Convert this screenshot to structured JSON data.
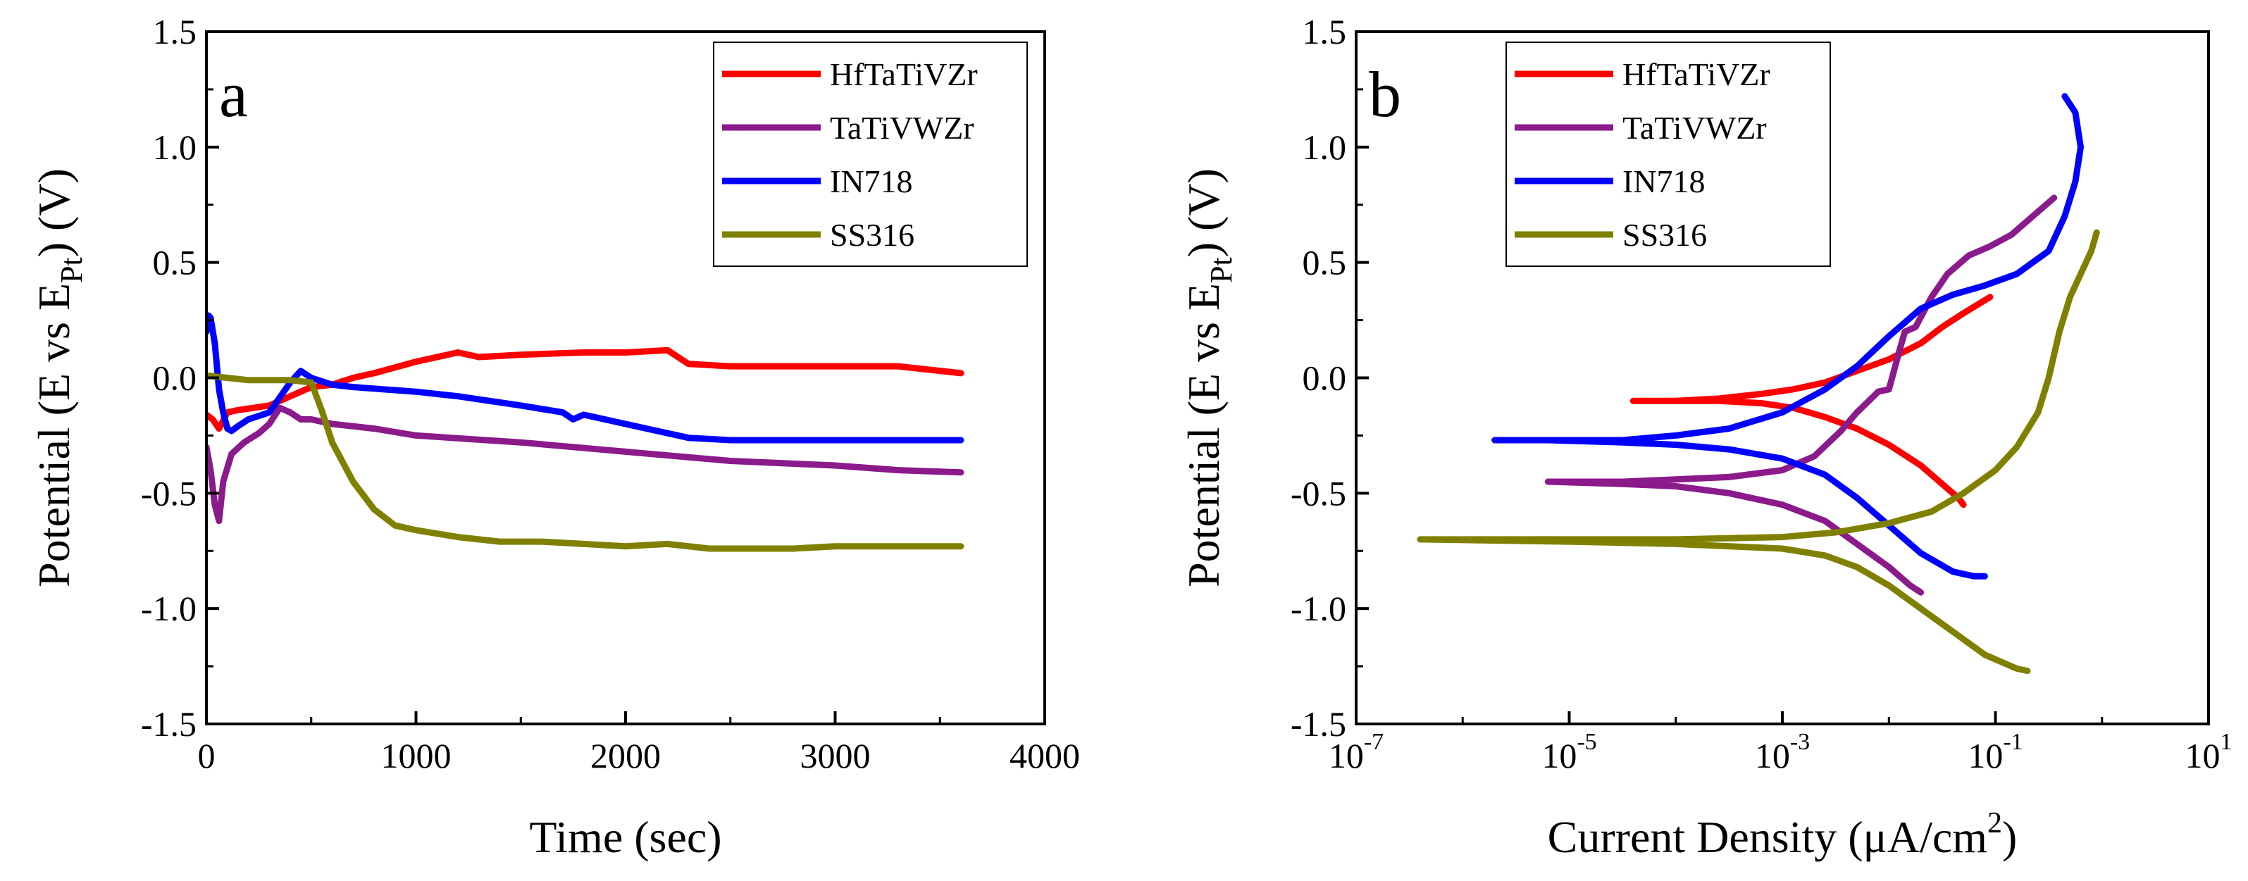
{
  "chart_data": [
    {
      "panel_label": "a",
      "type": "line",
      "xlabel": "Time (sec)",
      "ylabel": {
        "pre": "Potential (E vs E",
        "sub": "Pt",
        "post": ") (V)"
      },
      "xlim": [
        0,
        4000
      ],
      "ylim": [
        -1.5,
        1.5
      ],
      "xticks": [
        0,
        1000,
        2000,
        3000,
        4000
      ],
      "xtick_labels": [
        "0",
        "1000",
        "2000",
        "3000",
        "4000"
      ],
      "yticks": [
        -1.5,
        -1.0,
        -0.5,
        0.0,
        0.5,
        1.0,
        1.5
      ],
      "ytick_labels": [
        "-1.5",
        "-1.0",
        "-0.5",
        "0.0",
        "0.5",
        "1.0",
        "1.5"
      ],
      "legend_position": "top-right",
      "series": [
        {
          "name": "HfTaTiVZr",
          "color": "#ff0000",
          "x": [
            0,
            30,
            60,
            100,
            150,
            300,
            400,
            500,
            600,
            700,
            800,
            1000,
            1200,
            1300,
            1500,
            1800,
            2000,
            2200,
            2300,
            2500,
            3000,
            3300,
            3600
          ],
          "y": [
            -0.16,
            -0.18,
            -0.22,
            -0.15,
            -0.14,
            -0.12,
            -0.08,
            -0.04,
            -0.03,
            0.0,
            0.02,
            0.07,
            0.11,
            0.09,
            0.1,
            0.11,
            0.11,
            0.12,
            0.06,
            0.05,
            0.05,
            0.05,
            0.02
          ]
        },
        {
          "name": "TaTiVWZr",
          "color": "#8b1a8b",
          "x": [
            0,
            20,
            40,
            60,
            80,
            120,
            180,
            250,
            300,
            350,
            400,
            450,
            500,
            600,
            800,
            1000,
            1500,
            2000,
            2500,
            3000,
            3300,
            3600
          ],
          "y": [
            -0.3,
            -0.4,
            -0.55,
            -0.62,
            -0.45,
            -0.33,
            -0.28,
            -0.24,
            -0.2,
            -0.13,
            -0.15,
            -0.18,
            -0.18,
            -0.2,
            -0.22,
            -0.25,
            -0.28,
            -0.32,
            -0.36,
            -0.38,
            -0.4,
            -0.41
          ]
        },
        {
          "name": "IN718",
          "color": "#0000ff",
          "x": [
            0,
            10,
            20,
            40,
            60,
            80,
            100,
            120,
            150,
            200,
            300,
            400,
            450,
            500,
            600,
            700,
            1000,
            1200,
            1500,
            1700,
            1750,
            1800,
            2000,
            2100,
            2200,
            2300,
            2500,
            3000,
            3600
          ],
          "y": [
            0.2,
            0.27,
            0.26,
            0.15,
            -0.05,
            -0.15,
            -0.22,
            -0.23,
            -0.21,
            -0.18,
            -0.15,
            -0.02,
            0.03,
            0.0,
            -0.03,
            -0.04,
            -0.06,
            -0.08,
            -0.12,
            -0.15,
            -0.18,
            -0.16,
            -0.2,
            -0.22,
            -0.24,
            -0.26,
            -0.27,
            -0.27,
            -0.27
          ]
        },
        {
          "name": "SS316",
          "color": "#808000",
          "x": [
            0,
            100,
            200,
            300,
            400,
            500,
            550,
            600,
            700,
            800,
            900,
            1000,
            1200,
            1400,
            1600,
            1800,
            2000,
            2200,
            2400,
            2600,
            2800,
            3000,
            3200,
            3400,
            3600
          ],
          "y": [
            0.01,
            0.0,
            -0.01,
            -0.01,
            -0.01,
            -0.02,
            -0.14,
            -0.28,
            -0.45,
            -0.57,
            -0.64,
            -0.66,
            -0.69,
            -0.71,
            -0.71,
            -0.72,
            -0.73,
            -0.72,
            -0.74,
            -0.74,
            -0.74,
            -0.73,
            -0.73,
            -0.73,
            -0.73
          ]
        }
      ]
    },
    {
      "panel_label": "b",
      "type": "line",
      "x_scale": "log",
      "xlabel": {
        "pre": "Current Density (",
        "mu": "μ",
        "mid": "A/cm",
        "sup": "2",
        "post": ")"
      },
      "ylabel": {
        "pre": "Potential (E vs E",
        "sub": "Pt",
        "post": ") (V)"
      },
      "xlim_exponent": [
        -7,
        1
      ],
      "ylim": [
        -1.5,
        1.5
      ],
      "xtick_exponents": [
        -7,
        -5,
        -3,
        -1,
        1
      ],
      "xtick_labels": [
        {
          "base": "10",
          "exp": "-7"
        },
        {
          "base": "10",
          "exp": "-5"
        },
        {
          "base": "10",
          "exp": "-3"
        },
        {
          "base": "10",
          "exp": "-1"
        },
        {
          "base": "10",
          "exp": "1"
        }
      ],
      "yticks": [
        -1.5,
        -1.0,
        -0.5,
        0.0,
        0.5,
        1.0,
        1.5
      ],
      "ytick_labels": [
        "-1.5",
        "-1.0",
        "-0.5",
        "0.0",
        "0.5",
        "1.0",
        "1.5"
      ],
      "legend_position": "top-left",
      "series": [
        {
          "name": "HfTaTiVZr",
          "color": "#ff0000",
          "log10_i": [
            -1.05,
            -1.3,
            -1.5,
            -1.7,
            -2.0,
            -2.3,
            -2.6,
            -2.9,
            -3.2,
            -3.6,
            -4.0,
            -4.4,
            -4.0,
            -3.6,
            -3.2,
            -2.9,
            -2.6,
            -2.3,
            -2.0,
            -1.7,
            -1.5,
            -1.35,
            -1.3
          ],
          "E": [
            0.35,
            0.28,
            0.22,
            0.15,
            0.08,
            0.03,
            -0.02,
            -0.05,
            -0.07,
            -0.09,
            -0.1,
            -0.1,
            -0.1,
            -0.1,
            -0.11,
            -0.13,
            -0.17,
            -0.22,
            -0.29,
            -0.38,
            -0.46,
            -0.52,
            -0.55
          ]
        },
        {
          "name": "TaTiVWZr",
          "color": "#8b1a8b",
          "log10_i": [
            -0.45,
            -0.65,
            -0.85,
            -1.05,
            -1.25,
            -1.45,
            -1.6,
            -1.75,
            -1.85,
            -1.9,
            -2.0,
            -2.1,
            -2.3,
            -2.45,
            -2.7,
            -3.0,
            -3.5,
            -4.0,
            -4.5,
            -5.2,
            -4.5,
            -4.0,
            -3.5,
            -3.0,
            -2.6,
            -2.3,
            -2.0,
            -1.8,
            -1.7
          ],
          "E": [
            0.78,
            0.7,
            0.62,
            0.57,
            0.53,
            0.45,
            0.35,
            0.22,
            0.2,
            0.12,
            -0.05,
            -0.06,
            -0.15,
            -0.23,
            -0.34,
            -0.4,
            -0.43,
            -0.44,
            -0.45,
            -0.45,
            -0.46,
            -0.47,
            -0.5,
            -0.55,
            -0.62,
            -0.72,
            -0.82,
            -0.9,
            -0.93
          ]
        },
        {
          "name": "IN718",
          "color": "#0000ff",
          "log10_i": [
            -0.35,
            -0.25,
            -0.2,
            -0.25,
            -0.35,
            -0.5,
            -0.8,
            -1.1,
            -1.4,
            -1.7,
            -2.0,
            -2.3,
            -2.6,
            -3.0,
            -3.5,
            -4.0,
            -4.5,
            -5.2,
            -5.7,
            -5.2,
            -4.5,
            -4.0,
            -3.5,
            -3.0,
            -2.6,
            -2.3,
            -2.0,
            -1.7,
            -1.4,
            -1.2,
            -1.1
          ],
          "E": [
            1.22,
            1.15,
            1.0,
            0.85,
            0.7,
            0.55,
            0.45,
            0.4,
            0.36,
            0.3,
            0.18,
            0.05,
            -0.05,
            -0.15,
            -0.22,
            -0.25,
            -0.27,
            -0.27,
            -0.27,
            -0.27,
            -0.28,
            -0.29,
            -0.31,
            -0.35,
            -0.42,
            -0.52,
            -0.64,
            -0.76,
            -0.84,
            -0.86,
            -0.86
          ]
        },
        {
          "name": "SS316",
          "color": "#808000",
          "log10_i": [
            -0.05,
            -0.1,
            -0.2,
            -0.3,
            -0.4,
            -0.5,
            -0.6,
            -0.8,
            -1.0,
            -1.3,
            -1.6,
            -2.0,
            -2.5,
            -3.0,
            -4.0,
            -5.0,
            -6.4,
            -5.0,
            -4.0,
            -3.0,
            -2.6,
            -2.3,
            -2.0,
            -1.7,
            -1.4,
            -1.1,
            -0.8,
            -0.7
          ],
          "E": [
            0.63,
            0.55,
            0.45,
            0.35,
            0.2,
            0.0,
            -0.15,
            -0.3,
            -0.4,
            -0.5,
            -0.58,
            -0.63,
            -0.67,
            -0.69,
            -0.7,
            -0.7,
            -0.7,
            -0.71,
            -0.72,
            -0.74,
            -0.77,
            -0.82,
            -0.9,
            -1.0,
            -1.1,
            -1.2,
            -1.26,
            -1.27
          ]
        }
      ]
    }
  ]
}
